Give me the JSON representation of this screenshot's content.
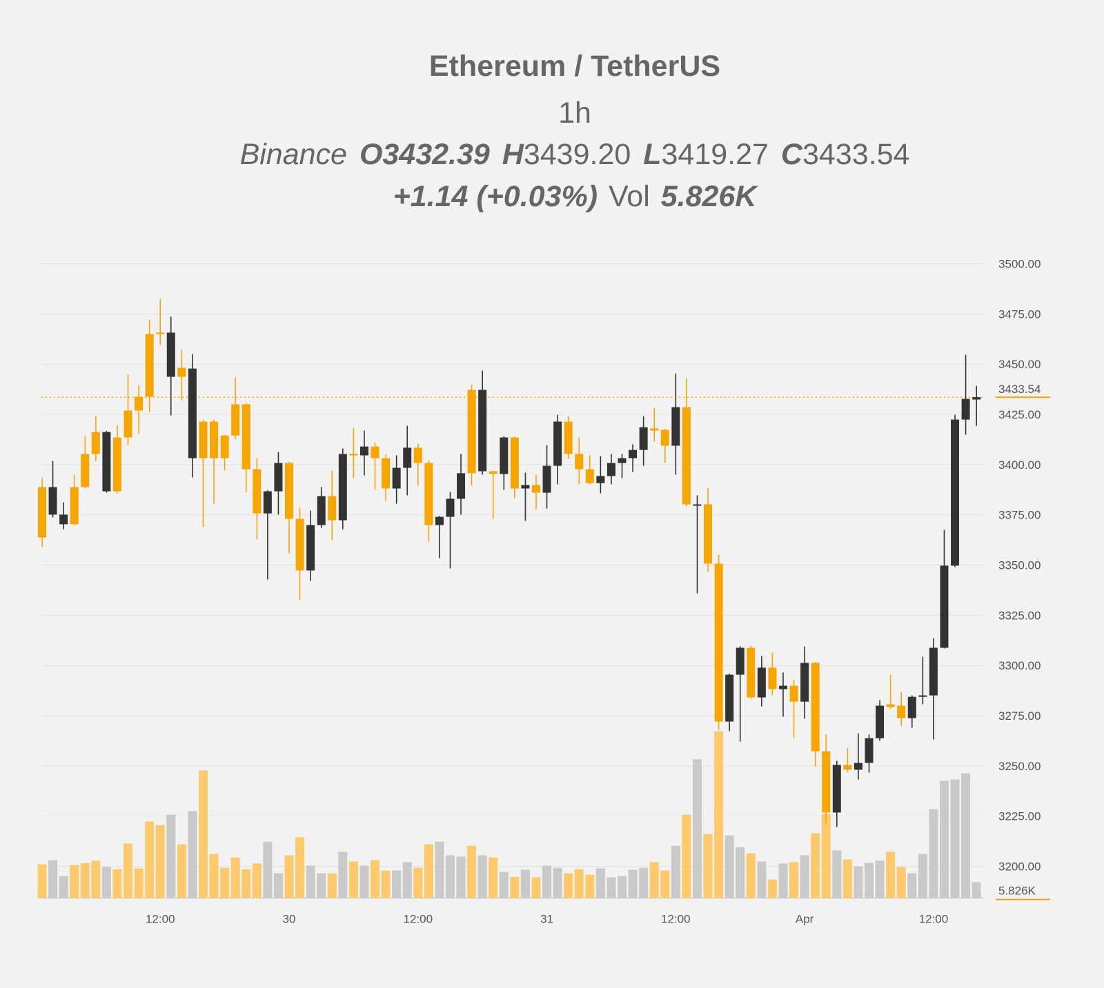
{
  "header": {
    "title": "Ethereum / TetherUS",
    "interval": "1h",
    "exchange": "Binance",
    "open_key": "O",
    "open": "3432.39",
    "high_key": "H",
    "high": "3439.20",
    "low_key": "L",
    "low": "3419.27",
    "close_key": "C",
    "close": "3433.54",
    "change": "+1.14 (+0.03%)",
    "volume_key": "Vol",
    "volume": "5.826K"
  },
  "chart_data": {
    "type": "candlestick",
    "categories": [
      null,
      null,
      null,
      null,
      null,
      null,
      null,
      null,
      null,
      null,
      null,
      "12:00",
      null,
      null,
      null,
      null,
      null,
      null,
      null,
      null,
      null,
      null,
      null,
      "30",
      null,
      null,
      null,
      null,
      null,
      null,
      null,
      null,
      null,
      null,
      null,
      "12:00",
      null,
      null,
      null,
      null,
      null,
      null,
      null,
      null,
      null,
      null,
      null,
      "31",
      null,
      null,
      null,
      null,
      null,
      null,
      null,
      null,
      null,
      null,
      null,
      "12:00",
      null,
      null,
      null,
      null,
      null,
      null,
      null,
      null,
      null,
      null,
      null,
      "Apr",
      null,
      null,
      null,
      null,
      null,
      null,
      null,
      null,
      null,
      null,
      null,
      "12:00",
      null,
      null,
      null,
      null
    ],
    "open": [
      3388.8,
      3375.1,
      3370.3,
      3388.8,
      3405.3,
      3416.2,
      3386.7,
      3413.5,
      3426.9,
      3433.8,
      3465.0,
      3465.7,
      3443.7,
      3448.2,
      3403.2,
      3421.4,
      3421.4,
      3414.5,
      3430.0,
      3430.0,
      3397.7,
      3375.7,
      3386.7,
      3400.8,
      3373.0,
      3347.3,
      3369.9,
      3384.3,
      3372.3,
      3405.3,
      3404.6,
      3409.0,
      3403.2,
      3388.1,
      3398.4,
      3408.4,
      3400.8,
      3369.9,
      3374.0,
      3383.0,
      3437.2,
      3396.7,
      3396.7,
      3395.3,
      3413.5,
      3388.1,
      3389.8,
      3386.0,
      3399.4,
      3421.4,
      3405.3,
      3397.7,
      3390.8,
      3394.3,
      3400.8,
      3403.2,
      3407.3,
      3418.0,
      3417.3,
      3409.4,
      3428.6,
      3379.5,
      3380.2,
      3350.7,
      3272.1,
      3295.4,
      3308.8,
      3284.1,
      3298.9,
      3288.2,
      3289.9,
      3282.0,
      3301.3,
      3257.3,
      3226.8,
      3250.5,
      3248.1,
      3251.5,
      3263.8,
      3280.7,
      3280.0,
      3273.8,
      3284.4,
      3285.1,
      3308.8,
      3349.7,
      3422.4,
      3432.39
    ],
    "high": [
      3393.6,
      3401.8,
      3381.2,
      3395.0,
      3414.2,
      3424.1,
      3416.8,
      3419.7,
      3444.7,
      3439.6,
      3472.2,
      3482.5,
      3473.6,
      3457.1,
      3455.0,
      3422.4,
      3422.4,
      3414.8,
      3443.4,
      3430.5,
      3403.2,
      3387.2,
      3406.3,
      3401.3,
      3378.5,
      3377.1,
      3388.8,
      3397.0,
      3408.0,
      3418.3,
      3416.9,
      3411.1,
      3405.3,
      3404.6,
      3419.3,
      3410.4,
      3402.2,
      3374.5,
      3386.4,
      3405.3,
      3439.9,
      3446.8,
      3397.0,
      3414.2,
      3414.0,
      3396.0,
      3395.0,
      3409.7,
      3424.8,
      3424.1,
      3413.5,
      3404.6,
      3404.2,
      3405.3,
      3405.3,
      3410.1,
      3424.1,
      3428.3,
      3417.8,
      3445.4,
      3443.0,
      3384.7,
      3388.4,
      3355.1,
      3295.9,
      3309.5,
      3309.8,
      3304.7,
      3306.4,
      3296.5,
      3293.0,
      3309.5,
      3301.8,
      3265.6,
      3252.5,
      3259.0,
      3266.2,
      3265.6,
      3282.7,
      3295.4,
      3286.8,
      3285.1,
      3304.3,
      3313.6,
      3367.5,
      3424.8,
      3454.7,
      3439.2
    ],
    "low": [
      3358.9,
      3373.7,
      3367.8,
      3369.8,
      3388.2,
      3401.8,
      3386.1,
      3385.7,
      3409.7,
      3415.2,
      3426.2,
      3459.5,
      3424.5,
      3432.0,
      3393.6,
      3368.9,
      3380.5,
      3397.0,
      3412.5,
      3386.0,
      3362.7,
      3342.8,
      3375.1,
      3355.8,
      3332.5,
      3342.1,
      3368.5,
      3362.4,
      3367.8,
      3393.3,
      3394.6,
      3387.4,
      3381.9,
      3380.5,
      3384.7,
      3389.5,
      3361.7,
      3353.4,
      3348.3,
      3375.1,
      3389.5,
      3395.0,
      3373.0,
      3387.4,
      3383.3,
      3372.0,
      3377.5,
      3378.1,
      3390.2,
      3402.9,
      3390.2,
      3390.2,
      3385.7,
      3390.2,
      3393.3,
      3396.3,
      3399.4,
      3411.4,
      3400.8,
      3395.0,
      3379.2,
      3335.9,
      3346.6,
      3268.0,
      3267.3,
      3262.1,
      3283.4,
      3279.6,
      3285.1,
      3274.5,
      3263.8,
      3273.5,
      3249.8,
      3220.9,
      3219.6,
      3246.7,
      3243.2,
      3246.7,
      3262.5,
      3278.3,
      3270.0,
      3269.0,
      3280.7,
      3263.2,
      3308.5,
      3349.0,
      3414.9,
      3419.27
    ],
    "close": [
      3363.7,
      3388.8,
      3375.1,
      3370.3,
      3388.8,
      3405.3,
      3416.2,
      3386.7,
      3413.5,
      3426.9,
      3433.8,
      3465.0,
      3465.7,
      3443.7,
      3447.8,
      3403.2,
      3403.2,
      3403.2,
      3414.5,
      3397.7,
      3375.7,
      3386.7,
      3400.8,
      3373.0,
      3347.3,
      3369.9,
      3384.3,
      3372.3,
      3405.3,
      3404.6,
      3409.0,
      3403.2,
      3388.1,
      3398.4,
      3408.4,
      3400.8,
      3369.9,
      3374.0,
      3383.0,
      3395.7,
      3395.7,
      3437.2,
      3395.3,
      3413.5,
      3388.1,
      3389.8,
      3386.0,
      3399.4,
      3421.4,
      3405.3,
      3397.7,
      3390.8,
      3394.3,
      3400.8,
      3403.2,
      3407.3,
      3418.6,
      3416.9,
      3409.4,
      3428.6,
      3380.2,
      3380.2,
      3350.7,
      3272.1,
      3295.4,
      3308.8,
      3284.1,
      3298.9,
      3288.2,
      3289.9,
      3282.0,
      3301.3,
      3257.3,
      3226.8,
      3250.5,
      3248.1,
      3251.5,
      3263.8,
      3280.0,
      3279.3,
      3273.8,
      3284.4,
      3285.1,
      3308.8,
      3349.7,
      3422.4,
      3432.7,
      3433.54
    ],
    "volume": {
      "values": [
        12400,
        13900,
        8100,
        12100,
        12900,
        13700,
        11400,
        10600,
        20000,
        10900,
        28100,
        26800,
        30600,
        19700,
        31900,
        46800,
        16200,
        11100,
        14900,
        10600,
        12700,
        20700,
        9100,
        15700,
        22300,
        11900,
        9100,
        9100,
        17000,
        13400,
        11900,
        13900,
        10100,
        10100,
        13200,
        11100,
        19700,
        20700,
        15700,
        15200,
        19200,
        15700,
        14900,
        9600,
        7800,
        10400,
        7600,
        11900,
        11100,
        9100,
        10600,
        8600,
        10900,
        7600,
        8100,
        10400,
        11100,
        13200,
        10100,
        19200,
        30600,
        50900,
        23500,
        61200,
        23000,
        18700,
        16400,
        13400,
        6800,
        12700,
        13200,
        15700,
        23800,
        30900,
        17500,
        14200,
        11600,
        12900,
        13700,
        17000,
        11400,
        9100,
        16200,
        32600,
        43000,
        43500,
        45800,
        5826
      ],
      "value_labels": [
        null,
        null,
        null,
        null,
        null,
        null,
        null,
        null,
        null,
        null,
        null,
        null,
        null,
        null,
        null,
        null,
        null,
        null,
        null,
        null,
        null,
        null,
        null,
        null,
        null,
        null,
        null,
        null,
        null,
        null,
        null,
        null,
        null,
        null,
        null,
        null,
        null,
        null,
        null,
        null,
        null,
        null,
        null,
        null,
        null,
        null,
        null,
        null,
        null,
        null,
        null,
        null,
        null,
        null,
        null,
        null,
        null,
        null,
        null,
        null,
        null,
        null,
        null,
        null,
        null,
        null,
        null,
        null,
        null,
        null,
        null,
        null,
        null,
        null,
        null,
        null,
        null,
        null,
        null,
        null,
        null,
        null,
        null,
        null,
        null,
        null,
        null,
        "5.826K"
      ],
      "up_color": "#c9c9c9",
      "down_color": "#fdc96b"
    },
    "up_color": "#333333",
    "down_color": "#f7a600",
    "last_price": 3433.54,
    "last_price_color": "#f7a600",
    "ylim": [
      3184.2,
      3508.2
    ],
    "yticks": [
      {
        "value": 3200,
        "label": "3200.00"
      },
      {
        "value": 3225,
        "label": "3225.00"
      },
      {
        "value": 3250,
        "label": "3250.00"
      },
      {
        "value": 3275,
        "label": "3275.00"
      },
      {
        "value": 3300,
        "label": "3300.00"
      },
      {
        "value": 3325,
        "label": "3325.00"
      },
      {
        "value": 3350,
        "label": "3350.00"
      },
      {
        "value": 3375,
        "label": "3375.00"
      },
      {
        "value": 3400,
        "label": "3400.00"
      },
      {
        "value": 3425,
        "label": "3425.00"
      },
      {
        "value": 3450,
        "label": "3450.00"
      },
      {
        "value": 3475,
        "label": "3475.00"
      },
      {
        "value": 3500,
        "label": "3500.00"
      }
    ],
    "grid": true
  }
}
